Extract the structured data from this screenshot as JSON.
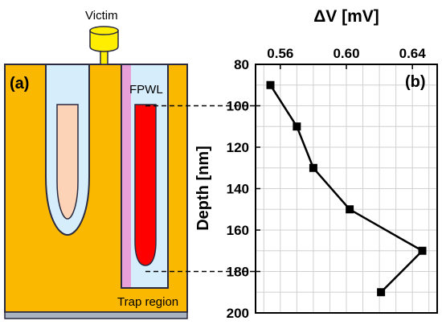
{
  "panel_a": {
    "label": "(a)",
    "victim_label": "Victim",
    "fpwl_label": "FPWL",
    "trap_label": "Trap region",
    "colors": {
      "substrate": "#fbb800",
      "well": "#d6eefc",
      "victim_core": "#fcd3b6",
      "fpwl_core": "#ff0000",
      "trap": "#e8a0d8",
      "gate": "#ffee00",
      "base": "#a8b4c0",
      "outline": "#2a2a40"
    }
  },
  "chart_data": {
    "type": "line",
    "panel_label": "(b)",
    "xlabel": "ΔV [mV]",
    "ylabel": "Depth [nm]",
    "x_axis_position": "top",
    "y_inverted": true,
    "xlim": [
      0.545,
      0.655
    ],
    "ylim": [
      80,
      200
    ],
    "xticks": [
      0.56,
      0.6,
      0.64
    ],
    "xtick_labels": [
      "0.56",
      "0.60",
      "0.64"
    ],
    "yticks": [
      80,
      100,
      120,
      140,
      160,
      180,
      200
    ],
    "ytick_labels": [
      "80",
      "100",
      "120",
      "140",
      "160",
      "180",
      "200"
    ],
    "grid": true,
    "marker": "square",
    "series": [
      {
        "color": "#000000",
        "points": [
          {
            "x": 0.554,
            "y": 90
          },
          {
            "x": 0.57,
            "y": 110
          },
          {
            "x": 0.58,
            "y": 130
          },
          {
            "x": 0.602,
            "y": 150
          },
          {
            "x": 0.646,
            "y": 170
          },
          {
            "x": 0.621,
            "y": 190
          }
        ]
      }
    ],
    "reference_lines_y": [
      100,
      180
    ]
  }
}
